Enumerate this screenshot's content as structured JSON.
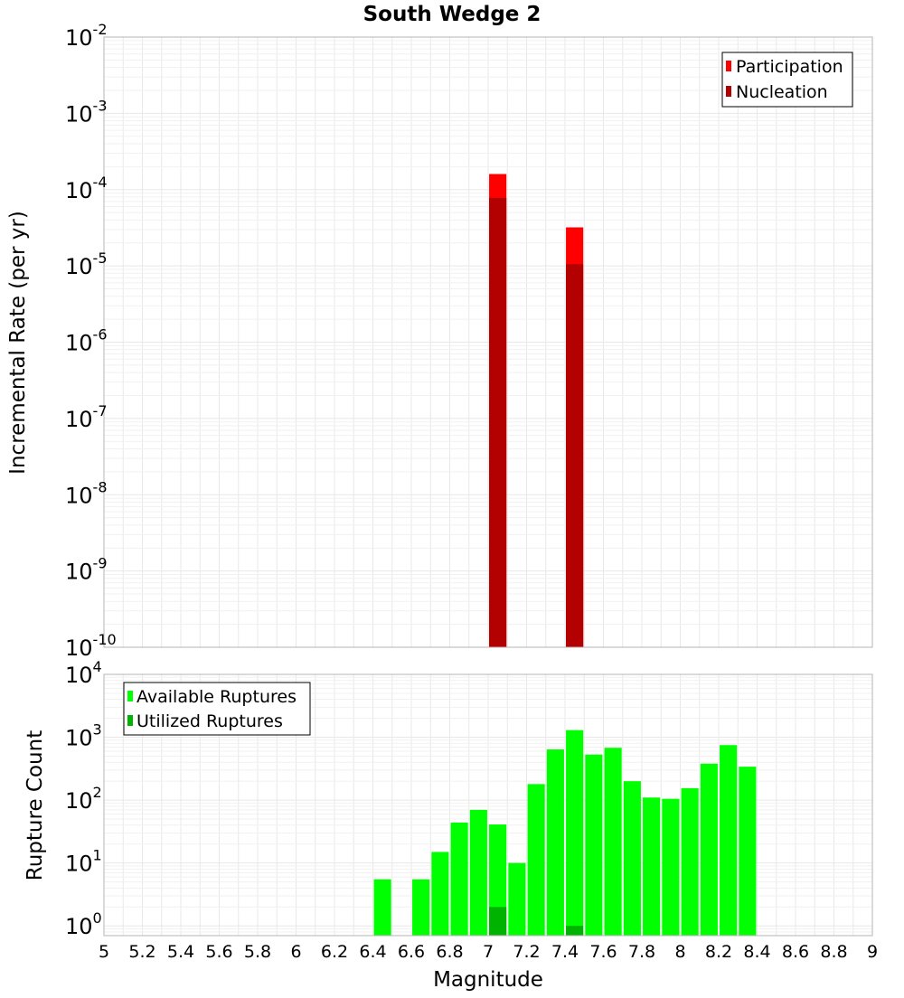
{
  "chart_data": [
    {
      "type": "bar",
      "title": "South Wedge 2",
      "ylabel": "Incremental Rate (per yr)",
      "xlabel": "",
      "yscale": "log",
      "xlim": [
        5,
        9
      ],
      "ylim": [
        1e-10,
        0.01
      ],
      "y_tick_bases": [
        "10",
        "10",
        "10",
        "10",
        "10",
        "10",
        "10",
        "10",
        "10"
      ],
      "y_tick_exps": [
        "-10",
        "-9",
        "-8",
        "-7",
        "-6",
        "-5",
        "-4",
        "-3",
        "-2"
      ],
      "legend_position": "top-right",
      "series": [
        {
          "name": "Participation",
          "color": "#ff0000",
          "points": [
            {
              "x": 7.05,
              "y": 0.00016
            },
            {
              "x": 7.45,
              "y": 3.2e-05
            }
          ]
        },
        {
          "name": "Nucleation",
          "color": "#b30000",
          "points": [
            {
              "x": 7.05,
              "y": 7.8e-05
            },
            {
              "x": 7.45,
              "y": 1.05e-05
            }
          ]
        }
      ]
    },
    {
      "type": "bar",
      "title": "",
      "ylabel": "Rupture Count",
      "xlabel": "Magnitude",
      "yscale": "log",
      "xlim": [
        5,
        9
      ],
      "ylim": [
        0.7,
        10000
      ],
      "y_tick_bases": [
        "10",
        "10",
        "10",
        "10",
        "10"
      ],
      "y_tick_exps": [
        "0",
        "1",
        "2",
        "3",
        "4"
      ],
      "x_tick_labels": [
        "5",
        "5.2",
        "5.4",
        "5.6",
        "5.8",
        "6",
        "6.2",
        "6.4",
        "6.6",
        "6.8",
        "7",
        "7.2",
        "7.4",
        "7.6",
        "7.8",
        "8",
        "8.2",
        "8.4",
        "8.6",
        "8.8",
        "9"
      ],
      "legend_position": "top-left",
      "series": [
        {
          "name": "Available Ruptures",
          "color": "#00ff00",
          "points": [
            {
              "x": 6.45,
              "y": 5.5
            },
            {
              "x": 6.65,
              "y": 5.5
            },
            {
              "x": 6.75,
              "y": 15
            },
            {
              "x": 6.85,
              "y": 44
            },
            {
              "x": 6.95,
              "y": 70
            },
            {
              "x": 7.05,
              "y": 41
            },
            {
              "x": 7.15,
              "y": 10
            },
            {
              "x": 7.25,
              "y": 180
            },
            {
              "x": 7.35,
              "y": 640
            },
            {
              "x": 7.45,
              "y": 1300
            },
            {
              "x": 7.55,
              "y": 530
            },
            {
              "x": 7.65,
              "y": 680
            },
            {
              "x": 7.75,
              "y": 200
            },
            {
              "x": 7.85,
              "y": 110
            },
            {
              "x": 7.95,
              "y": 105
            },
            {
              "x": 8.05,
              "y": 155
            },
            {
              "x": 8.15,
              "y": 380
            },
            {
              "x": 8.25,
              "y": 750
            },
            {
              "x": 8.35,
              "y": 340
            }
          ]
        },
        {
          "name": "Utilized Ruptures",
          "color": "#00b300",
          "points": [
            {
              "x": 7.05,
              "y": 2
            },
            {
              "x": 7.45,
              "y": 1
            }
          ]
        }
      ]
    }
  ]
}
